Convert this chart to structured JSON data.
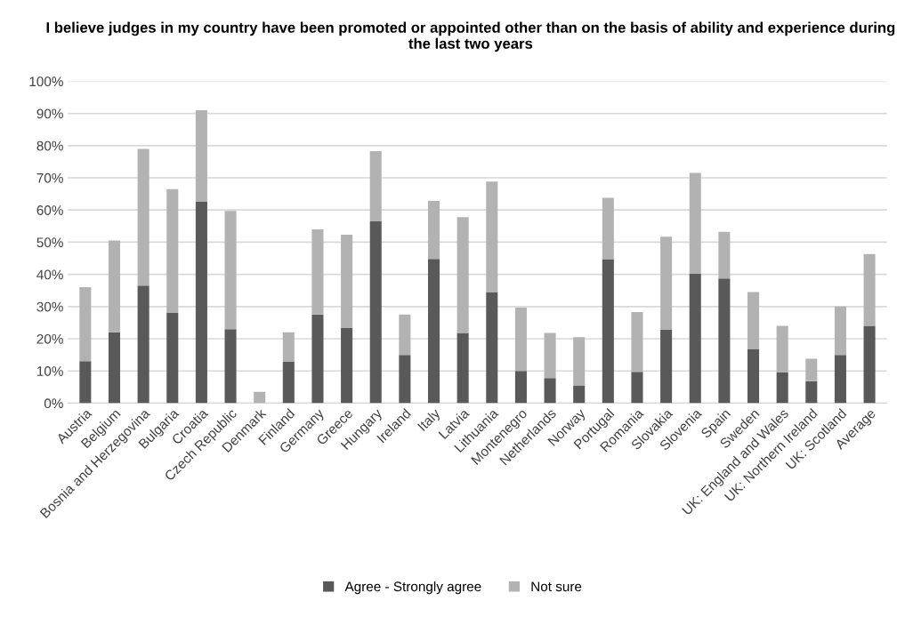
{
  "chart_data": {
    "type": "bar",
    "stacked": true,
    "title": "I believe judges in my country have been promoted or appointed other than on the basis of ability and experience during the last two years",
    "categories": [
      "Austria",
      "Belgium",
      "Bosnia and Herzegovina",
      "Bulgaria",
      "Croatia",
      "Czech Republic",
      "Denmark",
      "Finland",
      "Germany",
      "Greece",
      "Hungary",
      "Ireland",
      "Italy",
      "Latvia",
      "Lithuania",
      "Montenegro",
      "Netherlands",
      "Norway",
      "Portugal",
      "Romania",
      "Slovakia",
      "Slovenia",
      "Spain",
      "Sweden",
      "UK: England and Wales",
      "UK: Northern Ireland",
      "UK: Scotland",
      "Average"
    ],
    "series": [
      {
        "name": "Agree - Strongly agree",
        "color": "#595959",
        "values": [
          13,
          22,
          36.5,
          28,
          62.7,
          23,
          0,
          12.8,
          27.5,
          23.3,
          56.5,
          15,
          44.8,
          21.8,
          34.5,
          10,
          7.8,
          5.5,
          44.7,
          9.7,
          22.8,
          40.2,
          38.7,
          16.8,
          9.5,
          6.8,
          15,
          24
        ]
      },
      {
        "name": "Not sure",
        "color": "#b2b2b2",
        "values": [
          23,
          28.5,
          42.5,
          38.5,
          28.3,
          36.7,
          3.5,
          9.2,
          26.5,
          29,
          21.8,
          12.5,
          18,
          36,
          34.3,
          19.7,
          14,
          15,
          19.1,
          18.6,
          28.9,
          31.3,
          14.5,
          17.7,
          14.5,
          7,
          15,
          22.3
        ]
      }
    ],
    "ylim": [
      0,
      100
    ],
    "yticks": [
      {
        "value": 0,
        "label": "0%"
      },
      {
        "value": 10,
        "label": "10%"
      },
      {
        "value": 20,
        "label": "20%"
      },
      {
        "value": 30,
        "label": "30%"
      },
      {
        "value": 40,
        "label": "40%"
      },
      {
        "value": 50,
        "label": "50%"
      },
      {
        "value": 60,
        "label": "60%"
      },
      {
        "value": 70,
        "label": "70%"
      },
      {
        "value": 80,
        "label": "80%"
      },
      {
        "value": 90,
        "label": "90%"
      },
      {
        "value": 100,
        "label": "100%"
      }
    ],
    "grid": "y",
    "legend": "bottom"
  }
}
